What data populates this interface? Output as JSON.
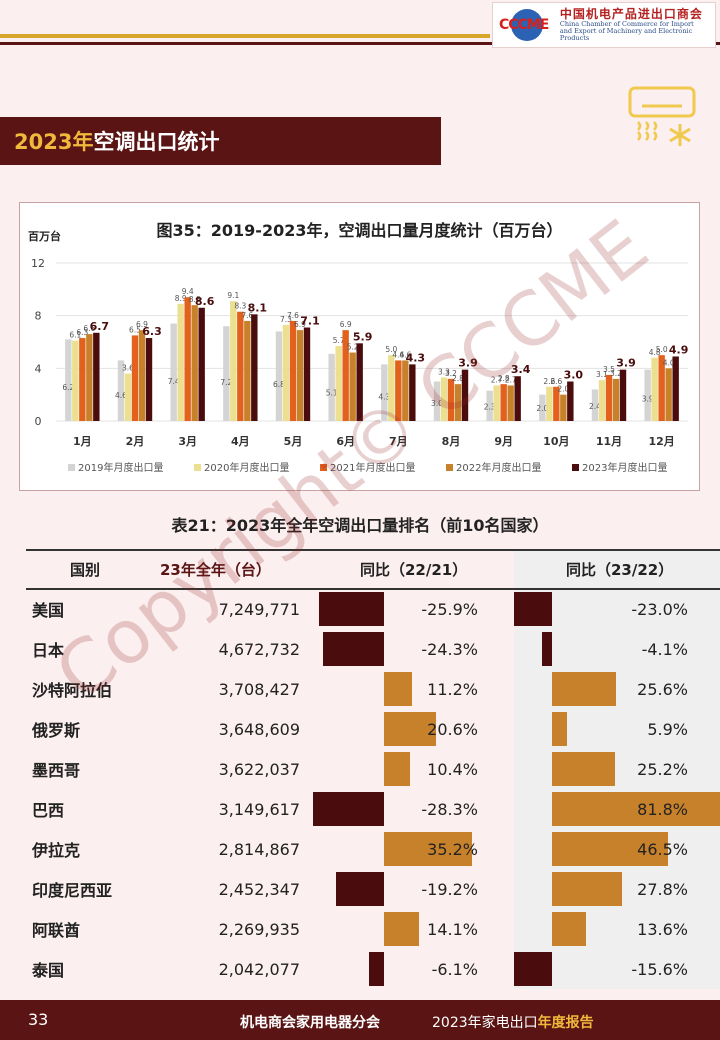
{
  "header": {
    "logo_mark": "CCCME",
    "org_cn": "中国机电产品进出口商会",
    "org_en_1": "China Chamber of Commerce for Import",
    "org_en_2": "and Export of Machinery and Electronic Products"
  },
  "section": {
    "title_year": "2023年",
    "title_rest": "空调出口统计"
  },
  "chart_data": {
    "type": "bar",
    "title": "图35：2019-2023年，空调出口量月度统计（百万台）",
    "ylabel": "百万台",
    "ylim": [
      0,
      12
    ],
    "yticks": [
      0,
      4,
      8,
      12
    ],
    "categories": [
      "1月",
      "2月",
      "3月",
      "4月",
      "5月",
      "6月",
      "7月",
      "8月",
      "9月",
      "10月",
      "11月",
      "12月"
    ],
    "series": [
      {
        "name": "2019年月度出口量",
        "color": "#d4d4d4",
        "values": [
          6.2,
          4.6,
          7.4,
          7.2,
          6.8,
          5.1,
          4.3,
          3.0,
          2.3,
          2.0,
          2.4,
          3.9
        ]
      },
      {
        "name": "2020年月度出口量",
        "color": "#ecdf8f",
        "values": [
          6.1,
          3.6,
          8.9,
          9.1,
          7.3,
          5.7,
          5.0,
          3.3,
          2.7,
          2.6,
          3.1,
          4.8
        ]
      },
      {
        "name": "2021年月度出口量",
        "color": "#e2611d",
        "values": [
          6.3,
          6.5,
          9.4,
          8.3,
          7.6,
          6.9,
          4.6,
          3.2,
          2.8,
          2.6,
          3.5,
          5.0
        ]
      },
      {
        "name": "2022年月度出口量",
        "color": "#c8812b",
        "values": [
          6.6,
          6.9,
          8.8,
          7.6,
          6.9,
          5.2,
          4.6,
          2.8,
          2.7,
          2.0,
          3.2,
          4.0
        ]
      },
      {
        "name": "2023年月度出口量",
        "color": "#4a0c0c",
        "values": [
          6.7,
          6.3,
          8.6,
          8.1,
          7.1,
          5.9,
          4.3,
          3.9,
          3.4,
          3.0,
          3.9,
          4.9
        ]
      }
    ]
  },
  "table": {
    "title": "表21：2023年全年空调出口量排名（前10名国家）",
    "headers": {
      "country": "国别",
      "total": "23年全年（台）",
      "yoy1": "同比（22/21）",
      "yoy2": "同比（23/22）"
    },
    "rows": [
      {
        "country": "美国",
        "total": "7,249,771",
        "yoy1": "-25.9%",
        "yoy1_v": -25.9,
        "yoy2": "-23.0%",
        "yoy2_v": -23.0
      },
      {
        "country": "日本",
        "total": "4,672,732",
        "yoy1": "-24.3%",
        "yoy1_v": -24.3,
        "yoy2": "-4.1%",
        "yoy2_v": -4.1
      },
      {
        "country": "沙特阿拉伯",
        "total": "3,708,427",
        "yoy1": "11.2%",
        "yoy1_v": 11.2,
        "yoy2": "25.6%",
        "yoy2_v": 25.6
      },
      {
        "country": "俄罗斯",
        "total": "3,648,609",
        "yoy1": "20.6%",
        "yoy1_v": 20.6,
        "yoy2": "5.9%",
        "yoy2_v": 5.9
      },
      {
        "country": "墨西哥",
        "total": "3,622,037",
        "yoy1": "10.4%",
        "yoy1_v": 10.4,
        "yoy2": "25.2%",
        "yoy2_v": 25.2
      },
      {
        "country": "巴西",
        "total": "3,149,617",
        "yoy1": "-28.3%",
        "yoy1_v": -28.3,
        "yoy2": "81.8%",
        "yoy2_v": 81.8
      },
      {
        "country": "伊拉克",
        "total": "2,814,867",
        "yoy1": "35.2%",
        "yoy1_v": 35.2,
        "yoy2": "46.5%",
        "yoy2_v": 46.5
      },
      {
        "country": "印度尼西亚",
        "total": "2,452,347",
        "yoy1": "-19.2%",
        "yoy1_v": -19.2,
        "yoy2": "27.8%",
        "yoy2_v": 27.8
      },
      {
        "country": "阿联酋",
        "total": "2,269,935",
        "yoy1": "14.1%",
        "yoy1_v": 14.1,
        "yoy2": "13.6%",
        "yoy2_v": 13.6
      },
      {
        "country": "泰国",
        "total": "2,042,077",
        "yoy1": "-6.1%",
        "yoy1_v": -6.1,
        "yoy2": "-15.6%",
        "yoy2_v": -15.6
      }
    ]
  },
  "footer": {
    "page": "33",
    "org": "机电商会家用电器分会",
    "report_pre": "2023年家电出口",
    "report_bold": "年度报告"
  },
  "watermark": "Copyright© CCCME",
  "colors": {
    "negative": "#4a0c0c",
    "positive": "#c8812b",
    "brand": "#5a1414",
    "accent": "#f0b93c"
  }
}
